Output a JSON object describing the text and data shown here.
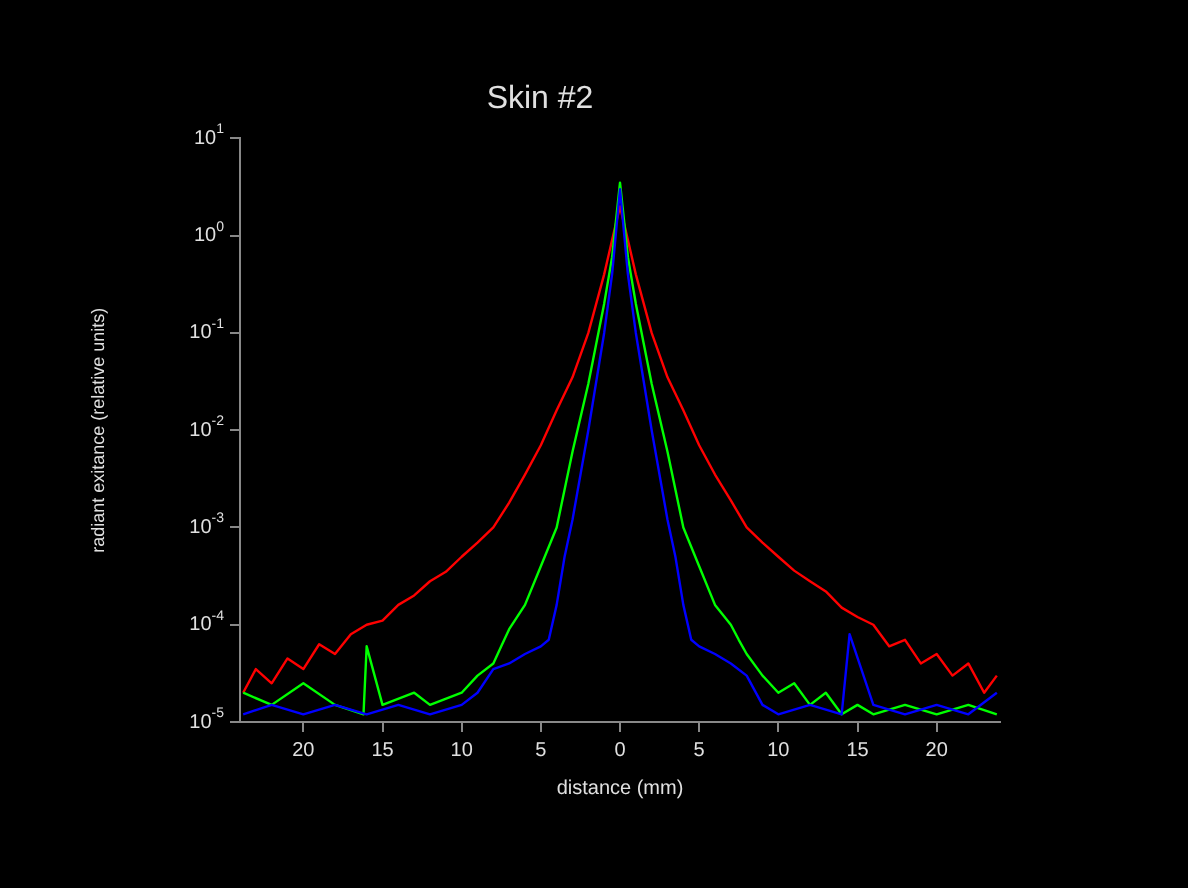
{
  "chart_data": {
    "type": "line",
    "title": "Skin #2",
    "xlabel": "distance (mm)",
    "ylabel": "radiant exitance (relative units)",
    "log": "y",
    "grid": false,
    "marker": "none",
    "line_style": "solid",
    "xlim": [
      -24,
      24
    ],
    "xticks": [
      {
        "value": -20,
        "label": "20"
      },
      {
        "value": -15,
        "label": "15"
      },
      {
        "value": -10,
        "label": "10"
      },
      {
        "value": -5,
        "label": "5"
      },
      0,
      5,
      10,
      15,
      20
    ],
    "ylim": [
      1e-05,
      10
    ],
    "yticks": [
      {
        "value": 1e-05,
        "label": "10$^{-5}$"
      },
      {
        "value": 0.0001,
        "label": "10$^{-4}$"
      },
      {
        "value": 0.001,
        "label": "10$^{-3}$"
      },
      {
        "value": 0.01,
        "label": "10$^{-2}$"
      },
      {
        "value": 0.1,
        "label": "10$^{-1}$"
      },
      {
        "value": 1,
        "label": "10$^{0}$"
      },
      {
        "value": 10,
        "label": "10$^{1}$"
      }
    ],
    "series": [
      {
        "color": "#ff0000",
        "x": [
          -23.8,
          -23,
          -22,
          -21,
          -20,
          -19,
          -18,
          -17,
          -16,
          -15,
          -14,
          -13,
          -12,
          -11,
          -10,
          -9,
          -8,
          -7,
          -6,
          -5,
          -4,
          -3,
          -2,
          -1,
          -0.5,
          0,
          0.5,
          1,
          2,
          3,
          4,
          5,
          6,
          7,
          8,
          9,
          10,
          11,
          12,
          13,
          14,
          15,
          16,
          17,
          18,
          19,
          20,
          21,
          22,
          23,
          23.8
        ],
        "values": [
          2e-05,
          3.5e-05,
          2.5e-05,
          4.5e-05,
          3.5e-05,
          6.3e-05,
          5e-05,
          8e-05,
          0.0001,
          0.00011,
          0.00016,
          0.0002,
          0.00028,
          0.00035,
          0.0005,
          0.0007,
          0.001,
          0.0018,
          0.0035,
          0.007,
          0.016,
          0.035,
          0.1,
          0.4,
          0.9,
          2,
          0.9,
          0.4,
          0.1,
          0.035,
          0.016,
          0.007,
          0.0035,
          0.0019,
          0.001,
          0.0007,
          0.0005,
          0.00036,
          0.00028,
          0.00022,
          0.00015,
          0.00012,
          0.0001,
          6e-05,
          7e-05,
          4e-05,
          5e-05,
          3e-05,
          4e-05,
          2e-05,
          3e-05
        ]
      },
      {
        "color": "#00ff00",
        "x": [
          -23.8,
          -22,
          -20,
          -18,
          -16.2,
          -16,
          -15,
          -13,
          -12,
          -10,
          -9,
          -8,
          -7.5,
          -7,
          -6,
          -5,
          -4,
          -3,
          -2,
          -1,
          -0.5,
          0,
          0.5,
          1,
          2,
          3,
          4,
          5,
          6,
          7,
          7.5,
          8,
          9,
          10,
          11,
          12,
          13,
          14,
          15,
          16,
          18,
          20,
          22,
          23.8
        ],
        "values": [
          2e-05,
          1.5e-05,
          2.5e-05,
          1.5e-05,
          1.2e-05,
          6e-05,
          1.5e-05,
          2e-05,
          1.5e-05,
          2e-05,
          3e-05,
          4e-05,
          6e-05,
          9e-05,
          0.00016,
          0.0004,
          0.001,
          0.006,
          0.03,
          0.2,
          0.6,
          3.5,
          0.6,
          0.2,
          0.03,
          0.006,
          0.001,
          0.0004,
          0.00016,
          0.0001,
          7e-05,
          5e-05,
          3e-05,
          2e-05,
          2.5e-05,
          1.5e-05,
          2e-05,
          1.2e-05,
          1.5e-05,
          1.2e-05,
          1.5e-05,
          1.2e-05,
          1.5e-05,
          1.2e-05
        ]
      },
      {
        "color": "#0000ff",
        "x": [
          -23.8,
          -22,
          -20,
          -18,
          -16,
          -14,
          -12,
          -10,
          -9,
          -8,
          -7,
          -6,
          -5,
          -4.5,
          -4,
          -3.5,
          -3,
          -2,
          -1,
          -0.5,
          0,
          0.5,
          1,
          2,
          3,
          3.5,
          4,
          4.5,
          5,
          6,
          7,
          8,
          9,
          10,
          12,
          14,
          14.5,
          16,
          18,
          20,
          22,
          23.8
        ],
        "values": [
          1.2e-05,
          1.5e-05,
          1.2e-05,
          1.5e-05,
          1.2e-05,
          1.5e-05,
          1.2e-05,
          1.5e-05,
          2e-05,
          3.5e-05,
          4e-05,
          5e-05,
          6e-05,
          7e-05,
          0.00016,
          0.0005,
          0.0012,
          0.01,
          0.1,
          0.4,
          3,
          0.4,
          0.1,
          0.01,
          0.0012,
          0.0005,
          0.00016,
          7e-05,
          6e-05,
          5e-05,
          4e-05,
          3e-05,
          1.5e-05,
          1.2e-05,
          1.5e-05,
          1.2e-05,
          8e-05,
          1.5e-05,
          1.2e-05,
          1.5e-05,
          1.2e-05,
          2e-05
        ]
      }
    ]
  }
}
